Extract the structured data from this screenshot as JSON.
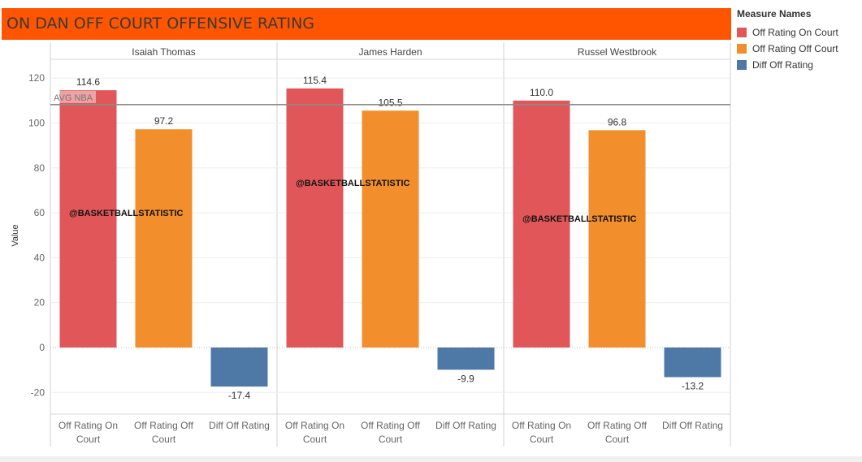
{
  "chart_data": {
    "type": "bar",
    "title": "ON DAN OFF COURT OFFENSIVE RATING",
    "ylabel": "Value",
    "ylim": [
      -30,
      130
    ],
    "yticks": [
      -20,
      0,
      20,
      40,
      60,
      80,
      100,
      120
    ],
    "grid": true,
    "legend_placement": "right",
    "legend": {
      "title": "Measure Names",
      "items": [
        {
          "label": "Off Rating On Court",
          "color": "#e15759"
        },
        {
          "label": "Off Rating Off Court",
          "color": "#f28e2b"
        },
        {
          "label": "Diff Off Rating",
          "color": "#4e79a7"
        }
      ]
    },
    "categories": [
      "Off Rating On Court",
      "Off Rating Off Court",
      "Diff Off Rating"
    ],
    "category_label_lines": [
      [
        "Off Rating On",
        "Court"
      ],
      [
        "Off Rating Off",
        "Court"
      ],
      [
        "Diff Off Rating"
      ]
    ],
    "panels": [
      {
        "name": "Isaiah Thomas",
        "values": [
          114.6,
          97.2,
          -17.4
        ],
        "labels": [
          "114.6",
          "97.2",
          "-17.4"
        ]
      },
      {
        "name": "James Harden",
        "values": [
          115.4,
          105.5,
          -9.9
        ],
        "labels": [
          "115.4",
          "105.5",
          "-9.9"
        ]
      },
      {
        "name": "Russel Westbrook",
        "values": [
          110.0,
          96.8,
          -13.2
        ],
        "labels": [
          "110.0",
          "96.8",
          "-13.2"
        ]
      }
    ],
    "reference_line": {
      "label": "AVG NBA",
      "value": 108.2
    },
    "watermarks": [
      {
        "text": "@BASKETBALLSTATISTIC",
        "panel": 0,
        "value": 58.5
      },
      {
        "text": "@BASKETBALLSTATISTIC",
        "panel": 1,
        "value": 72
      },
      {
        "text": "@BASKETBALLSTATISTIC",
        "panel": 2,
        "value": 56
      }
    ]
  }
}
